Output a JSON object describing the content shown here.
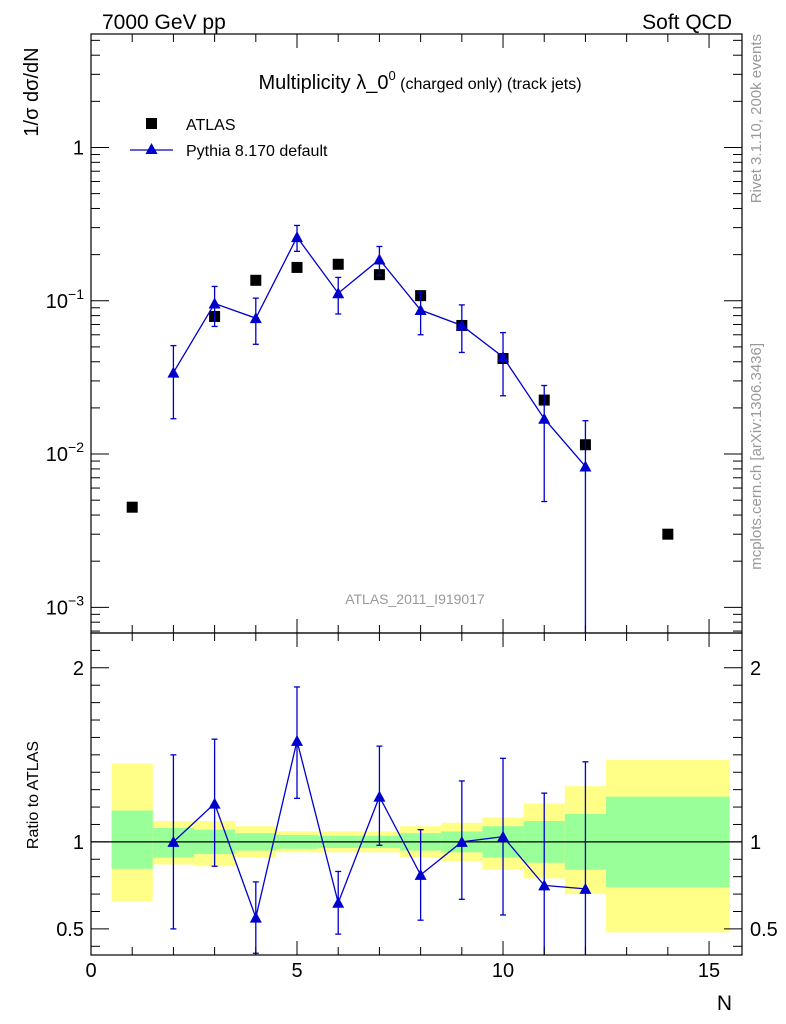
{
  "header": {
    "left": "7000 GeV pp",
    "right": "Soft QCD"
  },
  "side_labels": {
    "rivet": "Rivet 3.1.10,  200k events",
    "mcplots": "mcplots.cern.ch [arXiv:1306.3436]"
  },
  "chart_data": {
    "type": "scatter",
    "title": {
      "main": "Multiplicity λ_0",
      "sup": "0",
      "sub": " (charged only) (track jets)"
    },
    "xlabel": "N",
    "analysis": "ATLAS_2011_I919017",
    "top_panel": {
      "ylabel": "1/σ dσ/dN",
      "yscale": "log",
      "ylim": [
        0.00068,
        5.5
      ],
      "xlim": [
        0,
        15.8
      ],
      "yticks": [
        {
          "value": 0.001,
          "base": "10",
          "exp": "−3"
        },
        {
          "value": 0.01,
          "base": "10",
          "exp": "−2"
        },
        {
          "value": 0.1,
          "base": "10",
          "exp": "−1"
        },
        {
          "value": 1,
          "base": "1",
          "exp": ""
        }
      ],
      "legend": {
        "position": "top-left",
        "entries": [
          "ATLAS",
          "Pythia 8.170 default"
        ]
      },
      "series": [
        {
          "name": "ATLAS",
          "marker": "square",
          "color": "#000000",
          "points": [
            {
              "x": 1,
              "y": 0.0045
            },
            {
              "x": 3,
              "y": 0.079
            },
            {
              "x": 4,
              "y": 0.136
            },
            {
              "x": 5,
              "y": 0.165
            },
            {
              "x": 6,
              "y": 0.173
            },
            {
              "x": 7,
              "y": 0.148
            },
            {
              "x": 8,
              "y": 0.108
            },
            {
              "x": 9,
              "y": 0.069
            },
            {
              "x": 10,
              "y": 0.042
            },
            {
              "x": 11,
              "y": 0.0225
            },
            {
              "x": 12,
              "y": 0.0115
            },
            {
              "x": 14,
              "y": 0.003
            }
          ]
        },
        {
          "name": "Pythia 8.170 default",
          "marker": "triangle",
          "color": "#0000cc",
          "points": [
            {
              "x": 2,
              "y": 0.034,
              "lo": 0.017,
              "hi": 0.051
            },
            {
              "x": 3,
              "y": 0.096,
              "lo": 0.068,
              "hi": 0.124
            },
            {
              "x": 4,
              "y": 0.077,
              "lo": 0.052,
              "hi": 0.104
            },
            {
              "x": 5,
              "y": 0.26,
              "lo": 0.21,
              "hi": 0.31
            },
            {
              "x": 6,
              "y": 0.112,
              "lo": 0.082,
              "hi": 0.142
            },
            {
              "x": 7,
              "y": 0.186,
              "lo": 0.146,
              "hi": 0.226
            },
            {
              "x": 8,
              "y": 0.087,
              "lo": 0.06,
              "hi": 0.114
            },
            {
              "x": 9,
              "y": 0.069,
              "lo": 0.046,
              "hi": 0.094
            },
            {
              "x": 10,
              "y": 0.043,
              "lo": 0.024,
              "hi": 0.062
            },
            {
              "x": 11,
              "y": 0.017,
              "lo": 0.0049,
              "hi": 0.028
            },
            {
              "x": 12,
              "y": 0.0083,
              "lo": 0.0001,
              "hi": 0.0165
            }
          ]
        }
      ]
    },
    "ratio_panel": {
      "ylabel": "Ratio to ATLAS",
      "ylim": [
        0.35,
        2.2
      ],
      "yticks": [
        {
          "value": 0.5,
          "label": "0.5"
        },
        {
          "value": 1,
          "label": "1"
        },
        {
          "value": 2,
          "label": "2"
        }
      ],
      "bands": [
        {
          "x0": 0.5,
          "x1": 1.5,
          "g_lo": 0.845,
          "g_hi": 1.18,
          "y_lo": 0.66,
          "y_hi": 1.45
        },
        {
          "x0": 1.5,
          "x1": 2.5,
          "g_lo": 0.91,
          "g_hi": 1.08,
          "y_lo": 0.87,
          "y_hi": 1.12
        },
        {
          "x0": 2.5,
          "x1": 3.5,
          "g_lo": 0.93,
          "g_hi": 1.07,
          "y_lo": 0.86,
          "y_hi": 1.12
        },
        {
          "x0": 3.5,
          "x1": 4.5,
          "g_lo": 0.95,
          "g_hi": 1.05,
          "y_lo": 0.91,
          "y_hi": 1.09
        },
        {
          "x0": 4.5,
          "x1": 5.5,
          "g_lo": 0.96,
          "g_hi": 1.04,
          "y_lo": 0.94,
          "y_hi": 1.06
        },
        {
          "x0": 5.5,
          "x1": 6.5,
          "g_lo": 0.965,
          "g_hi": 1.035,
          "y_lo": 0.94,
          "y_hi": 1.06
        },
        {
          "x0": 6.5,
          "x1": 7.5,
          "g_lo": 0.965,
          "g_hi": 1.035,
          "y_lo": 0.94,
          "y_hi": 1.06
        },
        {
          "x0": 7.5,
          "x1": 8.5,
          "g_lo": 0.95,
          "g_hi": 1.05,
          "y_lo": 0.91,
          "y_hi": 1.09
        },
        {
          "x0": 8.5,
          "x1": 9.5,
          "g_lo": 0.94,
          "g_hi": 1.06,
          "y_lo": 0.89,
          "y_hi": 1.11
        },
        {
          "x0": 9.5,
          "x1": 10.5,
          "g_lo": 0.91,
          "g_hi": 1.09,
          "y_lo": 0.84,
          "y_hi": 1.14
        },
        {
          "x0": 10.5,
          "x1": 11.5,
          "g_lo": 0.88,
          "g_hi": 1.12,
          "y_lo": 0.79,
          "y_hi": 1.22
        },
        {
          "x0": 11.5,
          "x1": 12.5,
          "g_lo": 0.84,
          "g_hi": 1.16,
          "y_lo": 0.7,
          "y_hi": 1.32
        },
        {
          "x0": 12.5,
          "x1": 15.5,
          "g_lo": 0.74,
          "g_hi": 1.26,
          "y_lo": 0.48,
          "y_hi": 1.47
        }
      ],
      "points": [
        {
          "x": 2,
          "y": 1.0,
          "lo": 0.5,
          "hi": 1.5
        },
        {
          "x": 3,
          "y": 1.22,
          "lo": 0.86,
          "hi": 1.59
        },
        {
          "x": 4,
          "y": 0.565,
          "lo": 0.36,
          "hi": 0.77
        },
        {
          "x": 5,
          "y": 1.58,
          "lo": 1.25,
          "hi": 1.89
        },
        {
          "x": 6,
          "y": 0.65,
          "lo": 0.47,
          "hi": 0.83
        },
        {
          "x": 7,
          "y": 1.26,
          "lo": 0.98,
          "hi": 1.55
        },
        {
          "x": 8,
          "y": 0.81,
          "lo": 0.55,
          "hi": 1.07
        },
        {
          "x": 9,
          "y": 1.0,
          "lo": 0.67,
          "hi": 1.35
        },
        {
          "x": 10,
          "y": 1.03,
          "lo": 0.58,
          "hi": 1.48
        },
        {
          "x": 11,
          "y": 0.75,
          "lo": 0.2,
          "hi": 1.28
        },
        {
          "x": 12,
          "y": 0.73,
          "lo": 0.0,
          "hi": 1.46
        }
      ]
    }
  }
}
